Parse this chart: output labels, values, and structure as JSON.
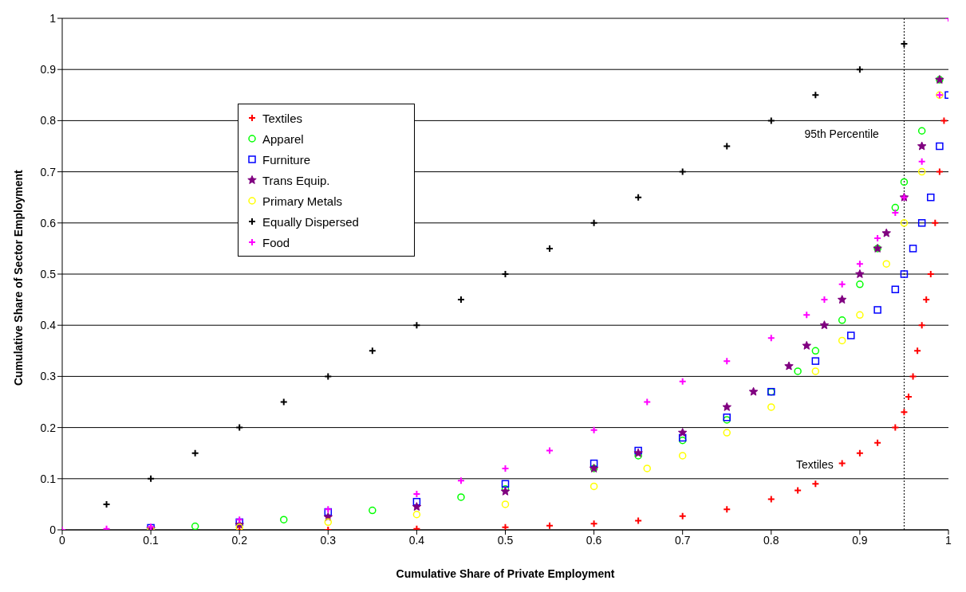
{
  "chart_data": {
    "type": "scatter",
    "xlabel": "Cumulative Share of Private Employment",
    "ylabel": "Cumulative Share of Sector Employment",
    "xlim": [
      0,
      1
    ],
    "ylim": [
      0,
      1
    ],
    "xticks": [
      0,
      0.1,
      0.2,
      0.3,
      0.4,
      0.5,
      0.6,
      0.7,
      0.8,
      0.9,
      1
    ],
    "yticks": [
      0,
      0.1,
      0.2,
      0.3,
      0.4,
      0.5,
      0.6,
      0.7,
      0.8,
      0.9,
      1
    ],
    "grid": "y",
    "legend": "top left",
    "ref_lines": [
      {
        "axis": "x",
        "value": 0.95,
        "label": "95th Percentile",
        "line_style": "dotted",
        "color": "#000000"
      }
    ],
    "annotations": [
      "Textiles"
    ],
    "series": [
      {
        "name": "Textiles",
        "color": "#ff0000",
        "marker": "cross",
        "x": [
          0.1,
          0.2,
          0.3,
          0.4,
          0.5,
          0.55,
          0.6,
          0.65,
          0.7,
          0.75,
          0.8,
          0.83,
          0.85,
          0.88,
          0.9,
          0.92,
          0.94,
          0.95,
          0.955,
          0.96,
          0.965,
          0.97,
          0.975,
          0.98,
          0.985,
          0.99,
          0.995
        ],
        "values": [
          0,
          0,
          0,
          0.002,
          0.005,
          0.008,
          0.012,
          0.018,
          0.027,
          0.04,
          0.06,
          0.077,
          0.09,
          0.13,
          0.15,
          0.17,
          0.2,
          0.23,
          0.26,
          0.3,
          0.35,
          0.4,
          0.45,
          0.5,
          0.6,
          0.7,
          0.8
        ]
      },
      {
        "name": "Apparel",
        "color": "#00ff00",
        "marker": "circle",
        "x": [
          0.15,
          0.25,
          0.35,
          0.45,
          0.5,
          0.6,
          0.65,
          0.7,
          0.75,
          0.8,
          0.83,
          0.85,
          0.88,
          0.9,
          0.92,
          0.94,
          0.95,
          0.97,
          0.99
        ],
        "values": [
          0.007,
          0.02,
          0.038,
          0.064,
          0.08,
          0.12,
          0.145,
          0.175,
          0.215,
          0.27,
          0.31,
          0.35,
          0.41,
          0.48,
          0.55,
          0.63,
          0.68,
          0.78,
          0.88
        ]
      },
      {
        "name": "Furniture",
        "color": "#0000ff",
        "marker": "square",
        "x": [
          0.1,
          0.2,
          0.3,
          0.4,
          0.5,
          0.6,
          0.65,
          0.7,
          0.75,
          0.8,
          0.85,
          0.89,
          0.92,
          0.94,
          0.95,
          0.96,
          0.97,
          0.98,
          0.99,
          1
        ],
        "values": [
          0.004,
          0.015,
          0.035,
          0.055,
          0.09,
          0.13,
          0.155,
          0.18,
          0.22,
          0.27,
          0.33,
          0.38,
          0.43,
          0.47,
          0.5,
          0.55,
          0.6,
          0.65,
          0.75,
          0.85
        ]
      },
      {
        "name": "Trans Equip.",
        "color": "#800080",
        "marker": "star",
        "x": [
          0.1,
          0.2,
          0.3,
          0.4,
          0.5,
          0.6,
          0.65,
          0.7,
          0.75,
          0.78,
          0.82,
          0.84,
          0.86,
          0.88,
          0.9,
          0.92,
          0.93,
          0.95,
          0.97,
          0.99
        ],
        "values": [
          0.002,
          0.01,
          0.025,
          0.045,
          0.075,
          0.12,
          0.15,
          0.19,
          0.24,
          0.27,
          0.32,
          0.36,
          0.4,
          0.45,
          0.5,
          0.55,
          0.58,
          0.65,
          0.75,
          0.88
        ]
      },
      {
        "name": "Primary Metals",
        "color": "#ffff00",
        "marker": "circle",
        "x": [
          0.1,
          0.2,
          0.3,
          0.4,
          0.5,
          0.6,
          0.66,
          0.7,
          0.75,
          0.8,
          0.85,
          0.88,
          0.9,
          0.93,
          0.95,
          0.97,
          0.99
        ],
        "values": [
          0.001,
          0.005,
          0.015,
          0.03,
          0.05,
          0.085,
          0.12,
          0.145,
          0.19,
          0.24,
          0.31,
          0.37,
          0.42,
          0.52,
          0.6,
          0.7,
          0.85
        ]
      },
      {
        "name": "Equally Dispersed",
        "color": "#000000",
        "marker": "cross",
        "x": [
          0.05,
          0.1,
          0.15,
          0.2,
          0.25,
          0.3,
          0.35,
          0.4,
          0.45,
          0.5,
          0.55,
          0.6,
          0.65,
          0.7,
          0.75,
          0.8,
          0.85,
          0.9,
          0.95
        ],
        "values": [
          0.05,
          0.1,
          0.15,
          0.2,
          0.25,
          0.3,
          0.35,
          0.4,
          0.45,
          0.5,
          0.55,
          0.6,
          0.65,
          0.7,
          0.75,
          0.8,
          0.85,
          0.9,
          0.95
        ]
      },
      {
        "name": "Food",
        "color": "#ff00ff",
        "marker": "cross",
        "x": [
          0,
          0.05,
          0.1,
          0.2,
          0.3,
          0.4,
          0.45,
          0.5,
          0.55,
          0.6,
          0.66,
          0.7,
          0.75,
          0.8,
          0.84,
          0.86,
          0.88,
          0.9,
          0.92,
          0.94,
          0.95,
          0.97,
          0.99,
          1
        ],
        "values": [
          0,
          0.002,
          0.006,
          0.02,
          0.04,
          0.07,
          0.096,
          0.12,
          0.155,
          0.195,
          0.25,
          0.29,
          0.33,
          0.375,
          0.42,
          0.45,
          0.48,
          0.52,
          0.57,
          0.62,
          0.65,
          0.72,
          0.85,
          1
        ]
      }
    ]
  }
}
